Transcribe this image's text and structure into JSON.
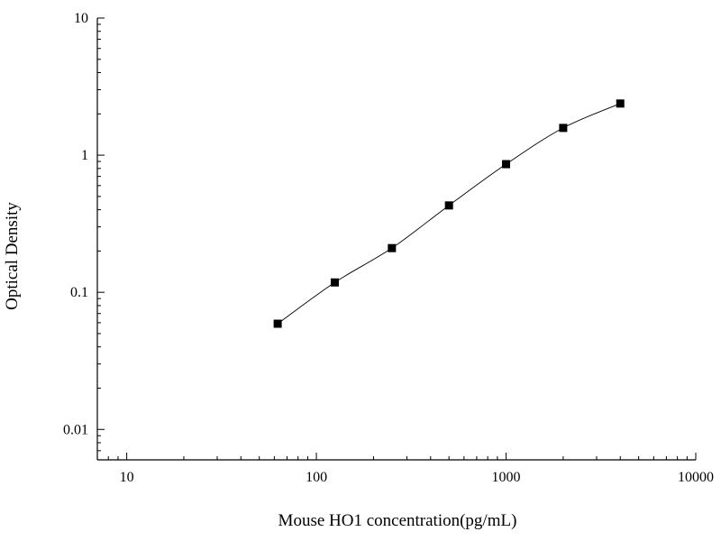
{
  "chart_data": {
    "type": "scatter",
    "title": "",
    "xlabel": "Mouse HO1 concentration(pg/mL)",
    "ylabel": "Optical Density",
    "x_scale": "log",
    "y_scale": "log",
    "xlim": [
      7,
      10000
    ],
    "ylim": [
      0.006,
      10
    ],
    "x_ticks": [
      {
        "value": 10,
        "label": "10"
      },
      {
        "value": 100,
        "label": "100"
      },
      {
        "value": 1000,
        "label": "1000"
      },
      {
        "value": 10000,
        "label": "10000"
      }
    ],
    "y_ticks": [
      {
        "value": 0.01,
        "label": "0.01"
      },
      {
        "value": 0.1,
        "label": "0.1"
      },
      {
        "value": 1,
        "label": "1"
      },
      {
        "value": 10,
        "label": "10"
      }
    ],
    "grid": false,
    "legend": "none",
    "marker_color": "#000000",
    "series": [
      {
        "points": [
          {
            "x": 62.5,
            "y": 0.059
          },
          {
            "x": 125,
            "y": 0.118
          },
          {
            "x": 250,
            "y": 0.21
          },
          {
            "x": 500,
            "y": 0.43
          },
          {
            "x": 1000,
            "y": 0.86
          },
          {
            "x": 2000,
            "y": 1.58
          },
          {
            "x": 4000,
            "y": 2.38
          }
        ],
        "fit_curve": true
      }
    ]
  }
}
